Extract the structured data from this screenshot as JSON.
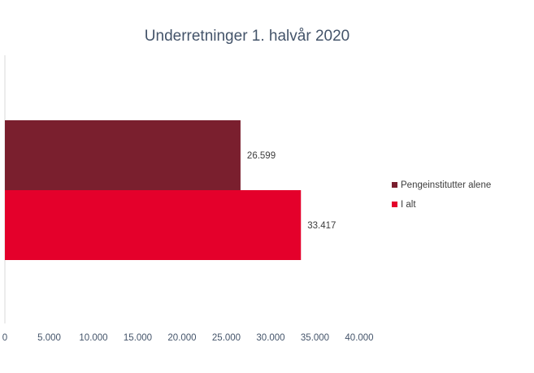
{
  "chart_data": {
    "type": "bar",
    "orientation": "horizontal",
    "title": "Underretninger 1. halvår 2020",
    "series": [
      {
        "name": "Pengeinstitutter alene",
        "value": 26599,
        "label": "26.599",
        "color": "#7a1f2e"
      },
      {
        "name": "I alt",
        "value": 33417,
        "label": "33.417",
        "color": "#e4002b"
      }
    ],
    "xlim": [
      0,
      40000
    ],
    "xticks": [
      {
        "value": 0,
        "label": "0"
      },
      {
        "value": 5000,
        "label": "5.000"
      },
      {
        "value": 10000,
        "label": "10.000"
      },
      {
        "value": 15000,
        "label": "15.000"
      },
      {
        "value": 20000,
        "label": "20.000"
      },
      {
        "value": 25000,
        "label": "25.000"
      },
      {
        "value": 30000,
        "label": "30.000"
      },
      {
        "value": 35000,
        "label": "35.000"
      },
      {
        "value": 40000,
        "label": "40.000"
      }
    ],
    "grid": false,
    "legend_position": "right"
  }
}
